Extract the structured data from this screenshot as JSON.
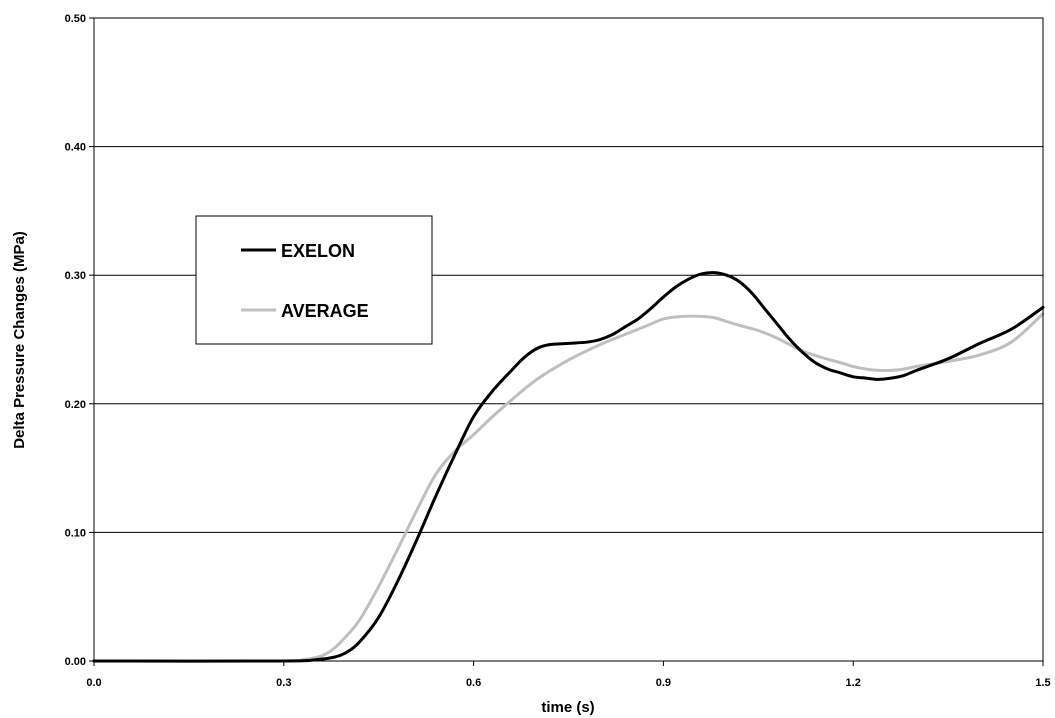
{
  "chart_data": {
    "type": "line",
    "title": "",
    "xlabel": "time (s)",
    "ylabel": "Delta Pressure Changes (MPa)",
    "xlim": [
      0,
      1.5
    ],
    "ylim": [
      0,
      0.5
    ],
    "x_ticks": [
      "0.0",
      "0.3",
      "0.6",
      "0.9",
      "1.2",
      "1.5"
    ],
    "x_tick_values": [
      0,
      0.3,
      0.6,
      0.9,
      1.2,
      1.5
    ],
    "y_ticks": [
      "0.00",
      "0.10",
      "0.20",
      "0.30",
      "0.40",
      "0.50"
    ],
    "y_tick_values": [
      0,
      0.1,
      0.2,
      0.3,
      0.4,
      0.5
    ],
    "grid": "horizontal",
    "legend_position": "left-center",
    "series": [
      {
        "name": "EXELON",
        "color": "#000000",
        "x": [
          0,
          0.3,
          0.35,
          0.38,
          0.4,
          0.42,
          0.45,
          0.48,
          0.51,
          0.54,
          0.57,
          0.6,
          0.63,
          0.66,
          0.68,
          0.7,
          0.72,
          0.75,
          0.78,
          0.8,
          0.82,
          0.84,
          0.86,
          0.88,
          0.9,
          0.92,
          0.94,
          0.96,
          0.98,
          1.0,
          1.02,
          1.04,
          1.06,
          1.08,
          1.1,
          1.12,
          1.14,
          1.16,
          1.18,
          1.2,
          1.22,
          1.24,
          1.26,
          1.28,
          1.3,
          1.35,
          1.4,
          1.45,
          1.5
        ],
        "y": [
          0,
          0,
          0.001,
          0.003,
          0.007,
          0.015,
          0.034,
          0.062,
          0.094,
          0.128,
          0.16,
          0.19,
          0.21,
          0.226,
          0.236,
          0.243,
          0.246,
          0.247,
          0.248,
          0.25,
          0.254,
          0.26,
          0.266,
          0.274,
          0.283,
          0.291,
          0.297,
          0.301,
          0.302,
          0.3,
          0.295,
          0.286,
          0.274,
          0.262,
          0.25,
          0.24,
          0.232,
          0.227,
          0.224,
          0.221,
          0.22,
          0.219,
          0.22,
          0.222,
          0.226,
          0.235,
          0.247,
          0.258,
          0.275
        ]
      },
      {
        "name": "AVERAGE",
        "color": "#bfbfbf",
        "x": [
          0,
          0.3,
          0.33,
          0.36,
          0.38,
          0.4,
          0.42,
          0.45,
          0.48,
          0.51,
          0.54,
          0.57,
          0.6,
          0.63,
          0.66,
          0.7,
          0.75,
          0.8,
          0.85,
          0.88,
          0.9,
          0.93,
          0.96,
          0.98,
          1.0,
          1.02,
          1.05,
          1.08,
          1.1,
          1.12,
          1.15,
          1.18,
          1.2,
          1.22,
          1.24,
          1.26,
          1.28,
          1.3,
          1.35,
          1.4,
          1.45,
          1.5
        ],
        "y": [
          0,
          0,
          0.001,
          0.004,
          0.01,
          0.02,
          0.032,
          0.058,
          0.087,
          0.117,
          0.145,
          0.163,
          0.176,
          0.19,
          0.203,
          0.219,
          0.234,
          0.246,
          0.256,
          0.262,
          0.266,
          0.268,
          0.268,
          0.267,
          0.264,
          0.261,
          0.257,
          0.251,
          0.246,
          0.241,
          0.236,
          0.232,
          0.229,
          0.227,
          0.226,
          0.226,
          0.227,
          0.229,
          0.233,
          0.238,
          0.248,
          0.27
        ]
      }
    ]
  }
}
